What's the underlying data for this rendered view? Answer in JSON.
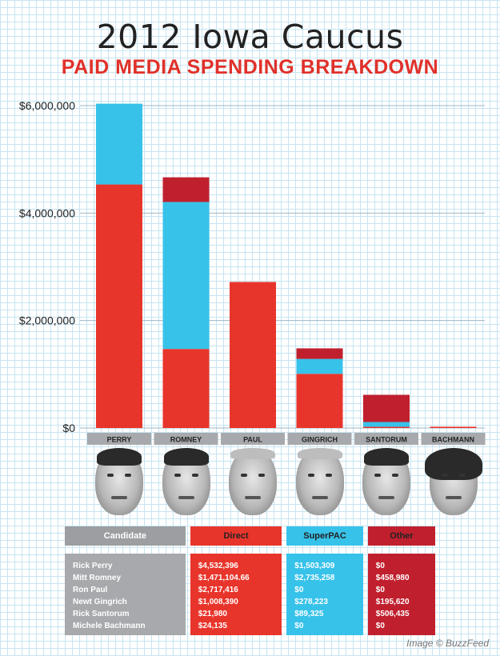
{
  "title": "2012 Iowa Caucus",
  "subtitle": "PAID MEDIA SPENDING BREAKDOWN",
  "credit": "Image © BuzzFeed",
  "colors": {
    "direct": "#e8352b",
    "superpac": "#37c2ea",
    "other": "#c0202e",
    "label_bg": "#a7a9ac",
    "grid": "#c7e4f2"
  },
  "chart_data": {
    "type": "bar",
    "stacked": true,
    "categories": [
      "PERRY",
      "ROMNEY",
      "PAUL",
      "GINGRICH",
      "SANTORUM",
      "BACHMANN"
    ],
    "series": [
      {
        "name": "Direct",
        "color": "#e8352b",
        "values": [
          4532396,
          1471104.66,
          2717416,
          1008390,
          21980,
          24135
        ]
      },
      {
        "name": "SuperPAC",
        "color": "#37c2ea",
        "values": [
          1503309,
          2735258,
          0,
          278223,
          89325,
          0
        ]
      },
      {
        "name": "Other",
        "color": "#c0202e",
        "values": [
          0,
          458980,
          0,
          195620,
          506435,
          0
        ]
      }
    ],
    "yticks": [
      0,
      2000000,
      4000000,
      6000000
    ],
    "ytick_labels": [
      "$0",
      "$2,000,000",
      "$4,000,000",
      "$6,000,000"
    ],
    "ylim": [
      0,
      6000000
    ],
    "grid": true,
    "legend": "table below chart"
  },
  "table": {
    "headers": [
      "Candidate",
      "Direct",
      "SuperPAC",
      "Other"
    ],
    "rows": [
      [
        "Rick Perry",
        "$4,532,396",
        "$1,503,309",
        "$0"
      ],
      [
        "Mitt Romney",
        "$1,471,104.66",
        "$2,735,258",
        "$458,980"
      ],
      [
        "Ron Paul",
        "$2,717,416",
        "$0",
        "$0"
      ],
      [
        "Newt Gingrich",
        "$1,008,390",
        "$278,223",
        "$195,620"
      ],
      [
        "Rick Santorum",
        "$21,980",
        "$89,325",
        "$506,435"
      ],
      [
        "Michele Bachmann",
        "$24,135",
        "$0",
        "$0"
      ]
    ]
  },
  "portraits": [
    "perry-portrait",
    "romney-portrait",
    "paul-portrait",
    "gingrich-portrait",
    "santorum-portrait",
    "bachmann-portrait"
  ]
}
